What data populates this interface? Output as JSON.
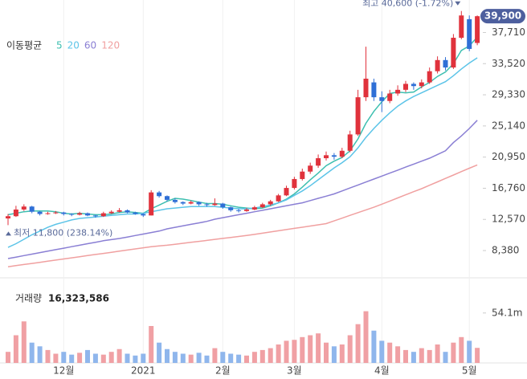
{
  "chart_data": {
    "type": "candlestick",
    "up_color": "#e0323c",
    "down_color": "#2f6fd6",
    "ylim": [
      5900,
      41000
    ],
    "yticks": [
      {
        "value": 8380,
        "label": "8,380"
      },
      {
        "value": 12570,
        "label": "12,570"
      },
      {
        "value": 16760,
        "label": "16,760"
      },
      {
        "value": 20950,
        "label": "20,950"
      },
      {
        "value": 25140,
        "label": "25,140"
      },
      {
        "value": 29330,
        "label": "29,330"
      },
      {
        "value": 33520,
        "label": "33,520"
      },
      {
        "value": 37710,
        "label": "37,710"
      }
    ],
    "last_label": "39,900",
    "high_label": "최고 40,600 (-1.72%)",
    "low_label": "최저 11,800 (238.14%)",
    "legend_title": "이동평균",
    "categories": [
      null,
      null,
      null,
      null,
      null,
      null,
      null,
      "12월",
      null,
      null,
      null,
      null,
      null,
      null,
      null,
      null,
      null,
      "2021",
      null,
      null,
      null,
      null,
      null,
      null,
      null,
      null,
      null,
      "2월",
      null,
      null,
      null,
      null,
      null,
      null,
      null,
      null,
      "3월",
      null,
      null,
      null,
      null,
      null,
      null,
      null,
      null,
      null,
      null,
      "4월",
      null,
      null,
      null,
      null,
      null,
      null,
      null,
      null,
      null,
      null,
      "5월",
      null
    ],
    "candles": [
      [
        12700,
        13300,
        11800,
        13000
      ],
      [
        13000,
        14400,
        12900,
        13900
      ],
      [
        13900,
        14600,
        13700,
        14300
      ],
      [
        14300,
        14400,
        13400,
        13600
      ],
      [
        13600,
        13700,
        13100,
        13300
      ],
      [
        13300,
        13600,
        13200,
        13400
      ],
      [
        13400,
        13700,
        13300,
        13500
      ],
      [
        13500,
        13600,
        13100,
        13300
      ],
      [
        13300,
        13400,
        13000,
        13200
      ],
      [
        13200,
        13600,
        13100,
        13400
      ],
      [
        13400,
        13500,
        13000,
        13100
      ],
      [
        13100,
        13200,
        12800,
        13000
      ],
      [
        13000,
        13600,
        12900,
        13400
      ],
      [
        13400,
        13800,
        13300,
        13600
      ],
      [
        13600,
        14100,
        13500,
        13800
      ],
      [
        13800,
        13900,
        13400,
        13500
      ],
      [
        13500,
        13600,
        13200,
        13300
      ],
      [
        13300,
        13400,
        12900,
        13100
      ],
      [
        13100,
        16500,
        13100,
        16200
      ],
      [
        16200,
        16400,
        15500,
        15700
      ],
      [
        15700,
        15800,
        15000,
        15200
      ],
      [
        15200,
        15400,
        14700,
        14900
      ],
      [
        14900,
        15000,
        14500,
        14700
      ],
      [
        14700,
        15100,
        14600,
        14900
      ],
      [
        14900,
        15000,
        14400,
        14600
      ],
      [
        14600,
        14800,
        14300,
        14500
      ],
      [
        14500,
        15400,
        14400,
        14700
      ],
      [
        14700,
        14800,
        14000,
        14200
      ],
      [
        14200,
        14300,
        13600,
        13800
      ],
      [
        13800,
        14000,
        13500,
        13700
      ],
      [
        13700,
        14100,
        13600,
        13900
      ],
      [
        13900,
        14400,
        13800,
        14200
      ],
      [
        14200,
        14800,
        14100,
        14600
      ],
      [
        14600,
        15200,
        14400,
        15000
      ],
      [
        15000,
        16000,
        14900,
        15800
      ],
      [
        15800,
        17100,
        15700,
        16800
      ],
      [
        16800,
        18300,
        16600,
        18000
      ],
      [
        18000,
        19400,
        17800,
        19000
      ],
      [
        19000,
        20200,
        18700,
        19800
      ],
      [
        19800,
        21300,
        19500,
        20800
      ],
      [
        20800,
        21700,
        20500,
        21200
      ],
      [
        21200,
        21500,
        20600,
        21000
      ],
      [
        21000,
        22200,
        20800,
        21800
      ],
      [
        21800,
        24500,
        21600,
        24000
      ],
      [
        24000,
        30000,
        23800,
        29000
      ],
      [
        29000,
        35800,
        28500,
        31500
      ],
      [
        31000,
        31500,
        28500,
        29000
      ],
      [
        29000,
        29800,
        27000,
        28500
      ],
      [
        28500,
        30000,
        28200,
        29500
      ],
      [
        29500,
        30600,
        29200,
        30000
      ],
      [
        30000,
        31200,
        29700,
        30800
      ],
      [
        30800,
        31000,
        30000,
        30500
      ],
      [
        30500,
        31400,
        30200,
        31000
      ],
      [
        31000,
        33000,
        30800,
        32500
      ],
      [
        32500,
        34500,
        32200,
        34000
      ],
      [
        34000,
        34400,
        32600,
        33000
      ],
      [
        33000,
        37500,
        32800,
        37000
      ],
      [
        37000,
        40600,
        36800,
        40000
      ],
      [
        39500,
        40000,
        35200,
        35500
      ],
      [
        36300,
        40000,
        36000,
        39900
      ]
    ],
    "series": [
      {
        "name": "5",
        "color": "#3dbfb0",
        "values": [
          13200,
          13400,
          13600,
          13700,
          13700,
          13700,
          13600,
          13400,
          13300,
          13400,
          13300,
          13200,
          13200,
          13300,
          13500,
          13600,
          13500,
          13400,
          14000,
          14500,
          15000,
          15400,
          15300,
          15100,
          14900,
          14700,
          14700,
          14600,
          14400,
          14200,
          14100,
          14000,
          14100,
          14400,
          14800,
          15300,
          16000,
          16900,
          17900,
          18800,
          19800,
          20400,
          20900,
          21800,
          23400,
          25500,
          27100,
          28400,
          29500,
          29700,
          29600,
          29700,
          30400,
          31000,
          31800,
          32400,
          33500,
          35300,
          35900,
          37100
        ]
      },
      {
        "name": "20",
        "color": "#5cc4e8",
        "values": [
          8800,
          9300,
          9900,
          10500,
          11000,
          11500,
          11900,
          12200,
          12500,
          12700,
          12800,
          12900,
          13000,
          13100,
          13200,
          13300,
          13300,
          13400,
          13600,
          13800,
          14000,
          14100,
          14200,
          14300,
          14300,
          14300,
          14300,
          14200,
          14100,
          14000,
          14000,
          14100,
          14300,
          14500,
          14800,
          15200,
          15800,
          16400,
          17100,
          17900,
          18700,
          19500,
          20200,
          21000,
          22200,
          23600,
          24800,
          25900,
          26900,
          27800,
          28500,
          29100,
          29600,
          30100,
          30600,
          31100,
          31900,
          32800,
          33600,
          34300
        ]
      },
      {
        "name": "60",
        "color": "#8a7fd4",
        "values": [
          7300,
          7500,
          7700,
          7900,
          8100,
          8300,
          8500,
          8700,
          8900,
          9100,
          9300,
          9500,
          9700,
          9850,
          10000,
          10200,
          10400,
          10600,
          10800,
          11000,
          11300,
          11500,
          11700,
          11900,
          12100,
          12300,
          12600,
          12800,
          13000,
          13200,
          13400,
          13600,
          13800,
          14000,
          14200,
          14400,
          14600,
          14800,
          15100,
          15400,
          15700,
          16000,
          16400,
          16800,
          17200,
          17600,
          18000,
          18400,
          18800,
          19200,
          19600,
          20000,
          20400,
          20800,
          21300,
          21800,
          22900,
          23800,
          24800,
          25900
        ]
      },
      {
        "name": "120",
        "color": "#f0a0a0",
        "values": [
          6200,
          6350,
          6500,
          6650,
          6800,
          6950,
          7100,
          7250,
          7400,
          7550,
          7700,
          7850,
          8000,
          8150,
          8300,
          8450,
          8600,
          8750,
          8900,
          9000,
          9100,
          9230,
          9360,
          9490,
          9620,
          9750,
          9880,
          10010,
          10140,
          10270,
          10400,
          10560,
          10720,
          10880,
          11040,
          11200,
          11360,
          11520,
          11680,
          11840,
          12000,
          12370,
          12740,
          13110,
          13480,
          13850,
          14200,
          14620,
          15040,
          15460,
          15880,
          16300,
          16700,
          17160,
          17620,
          18080,
          18540,
          19000,
          19450,
          19900
        ]
      }
    ],
    "volume": {
      "title": "거래량",
      "last_label": "16,323,586",
      "up_color": "#f0a0a4",
      "down_color": "#8fb6ec",
      "ylim": [
        0,
        80000000
      ],
      "yticks": [
        {
          "value": 54100000,
          "label": "54.1m"
        }
      ],
      "values": [
        12000000,
        30000000,
        45000000,
        22000000,
        18000000,
        14000000,
        10000000,
        12000000,
        9000000,
        11000000,
        14000000,
        10000000,
        9000000,
        12000000,
        15000000,
        10000000,
        8000000,
        10000000,
        40000000,
        22000000,
        15000000,
        12000000,
        10000000,
        9000000,
        11000000,
        8000000,
        16000000,
        12000000,
        10000000,
        9000000,
        8000000,
        12000000,
        14000000,
        16000000,
        20000000,
        24000000,
        25000000,
        28000000,
        30000000,
        32000000,
        22000000,
        18000000,
        20000000,
        30000000,
        42000000,
        56000000,
        35000000,
        24000000,
        22000000,
        18000000,
        14000000,
        12000000,
        16000000,
        14000000,
        20000000,
        12000000,
        22000000,
        28000000,
        24000000,
        16323586
      ]
    }
  }
}
